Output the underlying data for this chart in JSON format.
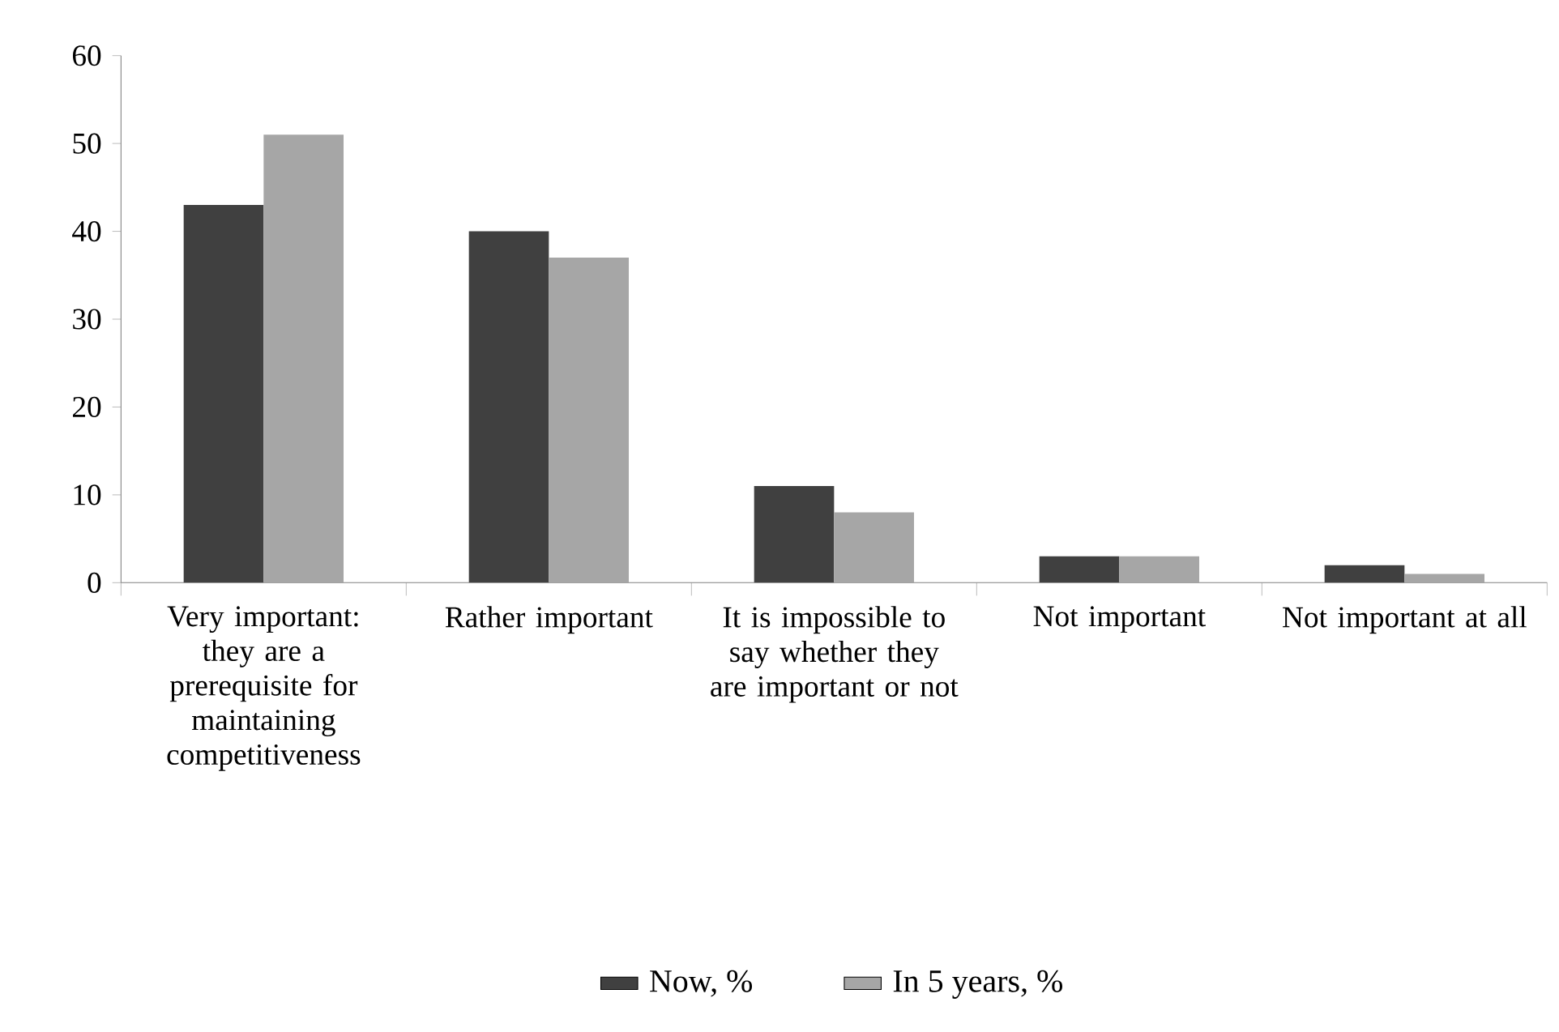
{
  "chart_data": {
    "type": "bar",
    "categories": [
      "Very important: they are a prerequisite for maintaining competitiveness",
      "Rather important",
      "It is impossible to say whether they are important or not",
      "Not important",
      "Not important at all"
    ],
    "series": [
      {
        "name": "Now, %",
        "color": "#404040",
        "values": [
          43,
          40,
          11,
          3,
          2
        ]
      },
      {
        "name": "In 5 years, %",
        "color": "#a6a6a6",
        "values": [
          51,
          37,
          8,
          3,
          1
        ]
      }
    ],
    "ylim": [
      0,
      60
    ],
    "yticks": [
      0,
      10,
      20,
      30,
      40,
      50,
      60
    ],
    "grid": false,
    "legend": "bottom"
  }
}
